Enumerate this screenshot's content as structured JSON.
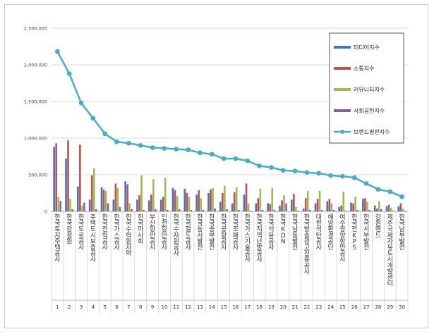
{
  "chart_data": {
    "type": "bar",
    "title": "",
    "xlabel": "",
    "ylabel": "",
    "ylim": [
      0,
      2500000
    ],
    "y_ticks": [
      "0",
      "500,000",
      "1,000,000",
      "1,500,000",
      "2,000,000",
      "2,500,000"
    ],
    "grid": true,
    "legend_position": "top-right",
    "category_numbers": [
      "1",
      "2",
      "3",
      "4",
      "5",
      "6",
      "7",
      "8",
      "9",
      "10",
      "11",
      "12",
      "13",
      "14",
      "15",
      "16",
      "17",
      "18",
      "19",
      "20",
      "21",
      "22",
      "23",
      "24",
      "25",
      "26",
      "27",
      "28",
      "29",
      "30"
    ],
    "categories": [
      "한국토지주택공사",
      "한국감정원",
      "한국도로공사",
      "주택도시보증공사",
      "한국전력공사",
      "한국가스공사",
      "한국수력원자력",
      "한국마사회",
      "부산항만공사",
      "인천항만공사",
      "한국수자원공사",
      "한국철도공사",
      "한국동서발전",
      "한국중부발전",
      "한국공항공사",
      "한국조폐공사",
      "한국가스기술공사",
      "한국지역난방공사",
      "한국석유공사",
      "한국KDN",
      "한국남동발전",
      "한국방송광고진흥공사",
      "대한석탄공사",
      "해양환경공단",
      "여수광양항만공사",
      "한국전KPS",
      "한국서부발전",
      "강원랜드",
      "제주국제자유도시개발센터",
      "한국남부발전"
    ],
    "series": [
      {
        "name": "미디어지수",
        "color": "#4472c4",
        "values": [
          880000,
          720000,
          340000,
          160000,
          330000,
          160000,
          410000,
          160000,
          150000,
          160000,
          320000,
          310000,
          230000,
          250000,
          130000,
          110000,
          230000,
          110000,
          110000,
          80000,
          160000,
          40000,
          110000,
          140000,
          60000,
          120000,
          170000,
          80000,
          70000,
          70000
        ]
      },
      {
        "name": "소통지수",
        "color": "#c0504d",
        "values": [
          930000,
          970000,
          910000,
          490000,
          300000,
          380000,
          370000,
          220000,
          230000,
          200000,
          290000,
          250000,
          290000,
          300000,
          250000,
          260000,
          380000,
          180000,
          100000,
          150000,
          240000,
          180000,
          170000,
          170000,
          80000,
          110000,
          180000,
          40000,
          90000,
          110000
        ]
      },
      {
        "name": "커뮤니티지수",
        "color": "#9bbb59",
        "values": [
          200000,
          170000,
          80000,
          590000,
          280000,
          320000,
          110000,
          490000,
          440000,
          460000,
          210000,
          200000,
          180000,
          320000,
          350000,
          330000,
          110000,
          310000,
          320000,
          220000,
          60000,
          280000,
          280000,
          110000,
          270000,
          200000,
          130000,
          140000,
          50000,
          40000
        ]
      },
      {
        "name": "사회공헌지수",
        "color": "#8064a2",
        "values": [
          140000,
          30000,
          120000,
          30000,
          110000,
          60000,
          30000,
          20000,
          30000,
          20000,
          30000,
          20000,
          20000,
          40000,
          30000,
          20000,
          10000,
          20000,
          20000,
          110000,
          10000,
          20000,
          20000,
          20000,
          10000,
          20000,
          20000,
          30000,
          10000,
          10000
        ]
      },
      {
        "name": "브랜드평판지수",
        "color": "#4bacc6",
        "type": "line",
        "values": [
          2180000,
          1880000,
          1480000,
          1270000,
          1060000,
          950000,
          930000,
          900000,
          870000,
          860000,
          850000,
          840000,
          800000,
          780000,
          720000,
          720000,
          690000,
          620000,
          600000,
          560000,
          550000,
          530000,
          520000,
          490000,
          480000,
          460000,
          380000,
          300000,
          270000,
          200000
        ]
      }
    ]
  }
}
